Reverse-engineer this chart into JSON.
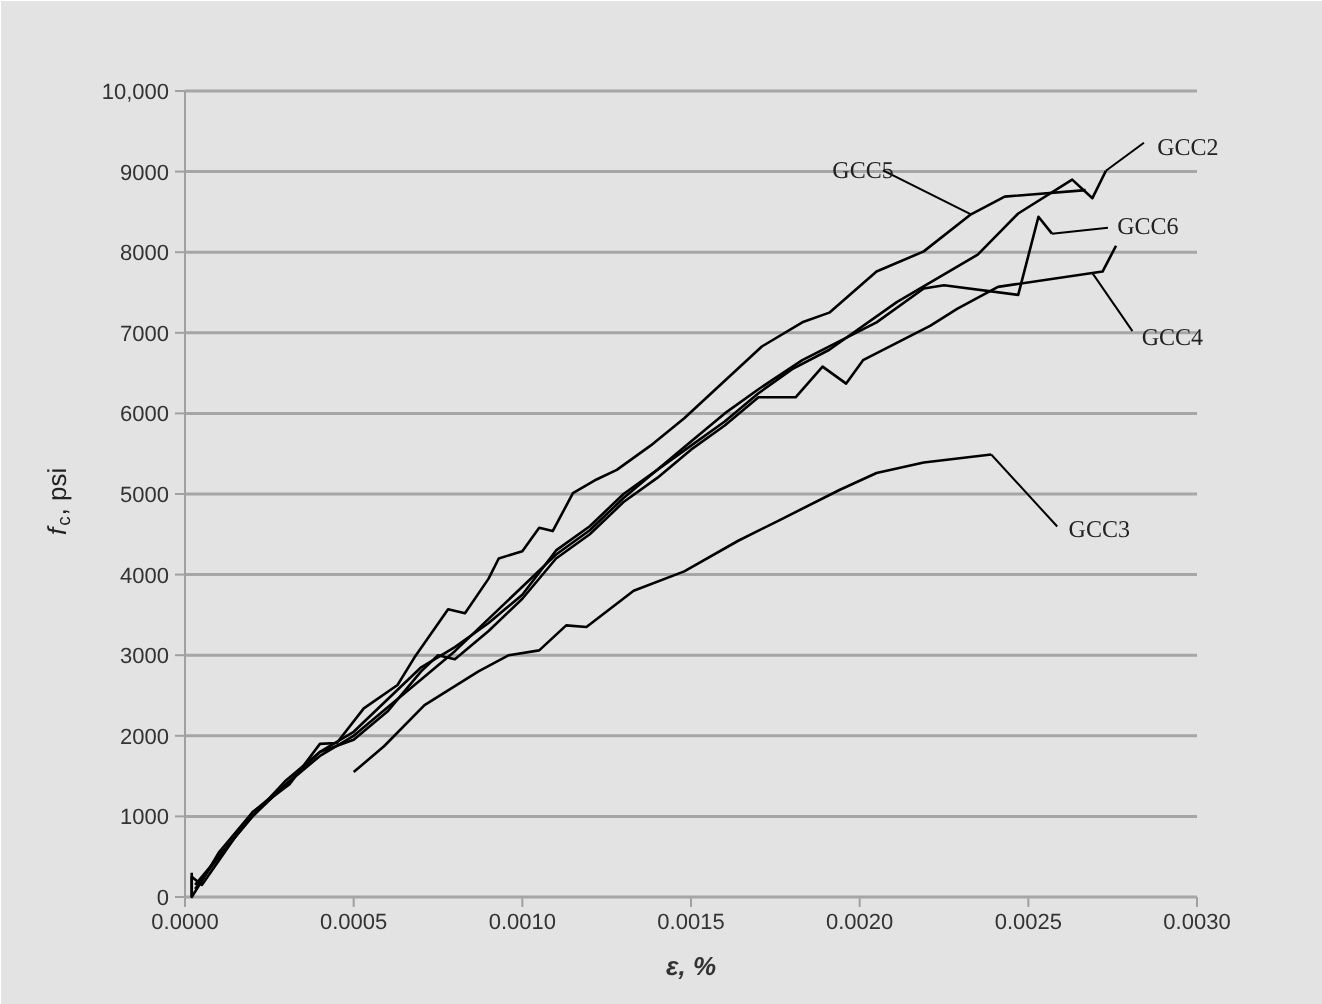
{
  "chart_data": {
    "type": "line",
    "xlabel": "ε, %",
    "ylabel": "f$_{c}$, psi",
    "xlim": [
      0,
      0.003
    ],
    "ylim": [
      0,
      10000
    ],
    "xticks": [
      {
        "value": 0,
        "label": "0.0000"
      },
      {
        "value": 0.0005,
        "label": "0.0005"
      },
      {
        "value": 0.001,
        "label": "0.0010"
      },
      {
        "value": 0.0015,
        "label": "0.0015"
      },
      {
        "value": 0.002,
        "label": "0.0020"
      },
      {
        "value": 0.0025,
        "label": "0.0025"
      },
      {
        "value": 0.003,
        "label": "0.0030"
      }
    ],
    "yticks": [
      0,
      1000,
      2000,
      3000,
      4000,
      5000,
      6000,
      7000,
      8000,
      9000,
      {
        "value": 10000,
        "label": "10,000"
      }
    ],
    "grid": "y",
    "marker": "none",
    "line_style": "solid",
    "series": [
      {
        "color": "#000000",
        "x": [
          2e-05,
          2e-05,
          5e-05,
          0.0001,
          0.00015,
          0.0002,
          0.0003,
          0.0004,
          0.0005,
          0.0006,
          0.0007,
          0.0008,
          0.0009,
          0.001,
          0.0011,
          0.0012,
          0.0013,
          0.0014,
          0.0015,
          0.0016,
          0.0017,
          0.0018,
          0.00191,
          0.00211,
          0.00235,
          0.00247,
          0.00263,
          0.00269,
          0.00273
        ],
        "values": [
          0,
          250,
          150,
          450,
          750,
          1050,
          1400,
          1750,
          2000,
          2350,
          2700,
          3050,
          3450,
          3850,
          4250,
          4550,
          4950,
          5300,
          5600,
          5900,
          6250,
          6550,
          6790,
          7380,
          7970,
          8480,
          8900,
          8670,
          9010
        ]
      },
      {
        "color": "#000000",
        "x": [
          0.0005,
          0.00059,
          0.00071,
          0.00087,
          0.00096,
          0.00105,
          0.00113,
          0.00119,
          0.00133,
          0.00148,
          0.00164,
          0.00176,
          0.00194,
          0.00205,
          0.00219,
          0.00239
        ],
        "values": [
          1550,
          1870,
          2380,
          2800,
          3000,
          3060,
          3370,
          3350,
          3800,
          4040,
          4420,
          4670,
          5050,
          5260,
          5390,
          5490
        ]
      },
      {
        "color": "#000000",
        "x": [
          3e-05,
          0.0001,
          0.0002,
          0.0003,
          0.0004,
          0.0005,
          0.0006,
          0.0007,
          0.00075,
          0.0008,
          0.0009,
          0.001,
          0.0011,
          0.0012,
          0.0013,
          0.0014,
          0.0015,
          0.0016,
          0.0017,
          0.00181,
          0.00189,
          0.00196,
          0.00201,
          0.00221,
          0.00229,
          0.00241,
          0.00272,
          0.00276
        ],
        "values": [
          100,
          500,
          1000,
          1450,
          1800,
          1950,
          2300,
          2800,
          3000,
          2950,
          3300,
          3700,
          4200,
          4500,
          4900,
          5200,
          5550,
          5850,
          6200,
          6200,
          6580,
          6370,
          6660,
          7090,
          7300,
          7570,
          7760,
          8080
        ]
      },
      {
        "color": "#000000",
        "x": [
          2e-05,
          2e-05,
          5e-05,
          0.0001,
          0.0002,
          0.00031,
          0.0004,
          0.00045,
          0.00053,
          0.00063,
          0.00068,
          0.00078,
          0.00083,
          0.0009,
          0.00093,
          0.001,
          0.00105,
          0.00109,
          0.00115,
          0.00122,
          0.00128,
          0.00138,
          0.00148,
          0.00171,
          0.00183,
          0.00191,
          0.00205,
          0.00219,
          0.00233,
          0.00243,
          0.00267
        ],
        "values": [
          300,
          0,
          200,
          550,
          1050,
          1400,
          1900,
          1910,
          2340,
          2630,
          2970,
          3570,
          3520,
          3950,
          4200,
          4290,
          4580,
          4540,
          5010,
          5180,
          5300,
          5600,
          5940,
          6830,
          7130,
          7250,
          7760,
          8010,
          8470,
          8690,
          8770
        ]
      },
      {
        "color": "#000000",
        "x": [
          3e-05,
          0.0001,
          0.0002,
          0.0003,
          0.0004,
          0.0005,
          0.0006,
          0.0007,
          0.0008,
          0.0009,
          0.001,
          0.0011,
          0.0012,
          0.0013,
          0.0014,
          0.0015,
          0.0016,
          0.0017,
          0.00183,
          0.00205,
          0.00219,
          0.00225,
          0.00247,
          0.00253,
          0.00257
        ],
        "values": [
          150,
          500,
          1000,
          1400,
          1800,
          2050,
          2450,
          2850,
          3100,
          3400,
          3750,
          4300,
          4600,
          5000,
          5300,
          5650,
          6000,
          6300,
          6660,
          7130,
          7550,
          7590,
          7470,
          8440,
          8230
        ]
      }
    ],
    "annotations": [
      {
        "text": "GCC2",
        "x": 0.00273,
        "y": 9010
      },
      {
        "text": "GCC3",
        "x": 0.00239,
        "y": 5490
      },
      {
        "text": "GCC4",
        "x": 0.00269,
        "y": 7740
      },
      {
        "text": "GCC5",
        "x": 0.00233,
        "y": 8470
      },
      {
        "text": "GCC6",
        "x": 0.00257,
        "y": 8230
      }
    ]
  }
}
